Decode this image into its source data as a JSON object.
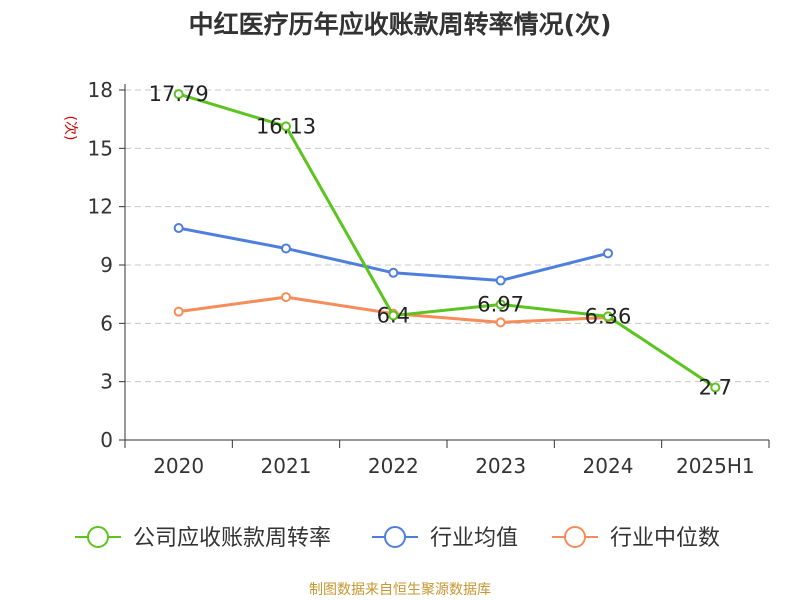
{
  "chart_data": {
    "type": "line",
    "title": "中红医疗历年应收账款周转率情况(次)",
    "ylabel": "(次)",
    "categories": [
      "2020",
      "2021",
      "2022",
      "2023",
      "2024",
      "2025H1"
    ],
    "ylim": [
      0,
      18
    ],
    "yticks": [
      0,
      3,
      6,
      9,
      12,
      15,
      18
    ],
    "grid": true,
    "legend_position": "bottom",
    "series": [
      {
        "name": "公司应收账款周转率",
        "color": "#5cc41f",
        "values": [
          17.79,
          16.13,
          6.4,
          6.97,
          6.36,
          2.7
        ],
        "labels": [
          "17.79",
          "16.13",
          "6.4",
          "6.97",
          "6.36",
          "2.7"
        ]
      },
      {
        "name": "行业均值",
        "color": "#4f7fdc",
        "values": [
          10.9,
          9.85,
          8.6,
          8.2,
          9.6,
          null
        ]
      },
      {
        "name": "行业中位数",
        "color": "#f68c5a",
        "values": [
          6.6,
          7.35,
          6.5,
          6.05,
          6.3,
          null
        ]
      }
    ]
  },
  "source_note": "制图数据来自恒生聚源数据库"
}
